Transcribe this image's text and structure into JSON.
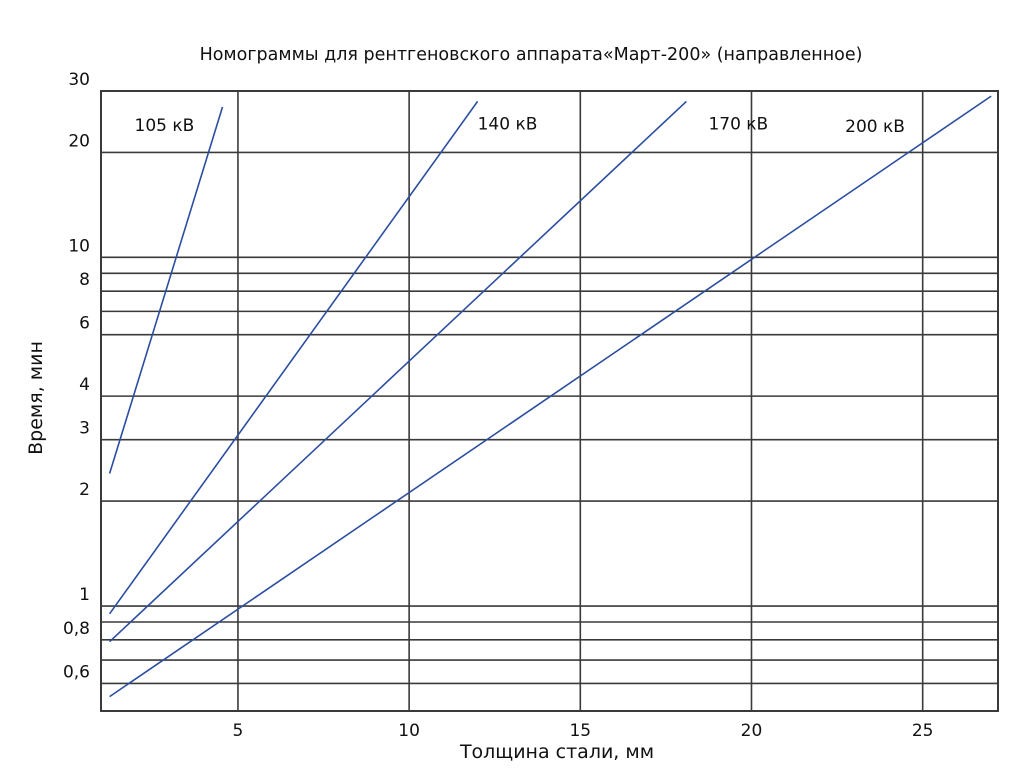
{
  "chart_data": {
    "type": "line",
    "title": "Номограммы для рентгеновского аппарата«Март-200» (направленное)",
    "xlabel": "Толщина стали, мм",
    "ylabel": "Время, мин",
    "y_scale": "log",
    "xlim": [
      1,
      27.2
    ],
    "ylim": [
      0.5,
      30
    ],
    "grid": true,
    "x_ticks": [
      {
        "value": 5,
        "label": "5"
      },
      {
        "value": 10,
        "label": "10"
      },
      {
        "value": 15,
        "label": "15"
      },
      {
        "value": 20,
        "label": "20"
      },
      {
        "value": 25,
        "label": "25"
      }
    ],
    "x_grid": [
      5,
      10,
      15,
      20,
      25
    ],
    "y_ticks": [
      {
        "value": 0.6,
        "label": "0,6"
      },
      {
        "value": 0.8,
        "label": "0,8"
      },
      {
        "value": 1,
        "label": "1"
      },
      {
        "value": 2,
        "label": "2"
      },
      {
        "value": 3,
        "label": "3"
      },
      {
        "value": 4,
        "label": "4"
      },
      {
        "value": 6,
        "label": "6"
      },
      {
        "value": 8,
        "label": "8"
      },
      {
        "value": 10,
        "label": "10"
      },
      {
        "value": 20,
        "label": "20"
      },
      {
        "value": 30,
        "label": "30"
      }
    ],
    "y_grid": [
      0.6,
      0.7,
      0.8,
      0.9,
      1,
      2,
      3,
      4,
      6,
      7,
      8,
      9,
      10,
      20
    ],
    "series": [
      {
        "name": "105 кВ",
        "points": [
          [
            1.25,
            2.4
          ],
          [
            4.55,
            27.0
          ]
        ]
      },
      {
        "name": "140 кВ",
        "points": [
          [
            1.25,
            0.95
          ],
          [
            12.0,
            28.0
          ]
        ]
      },
      {
        "name": "170 кВ",
        "points": [
          [
            1.25,
            0.79
          ],
          [
            18.1,
            28.0
          ]
        ]
      },
      {
        "name": "200 кВ",
        "points": [
          [
            1.25,
            0.55
          ],
          [
            27.0,
            29.0
          ]
        ]
      }
    ]
  }
}
